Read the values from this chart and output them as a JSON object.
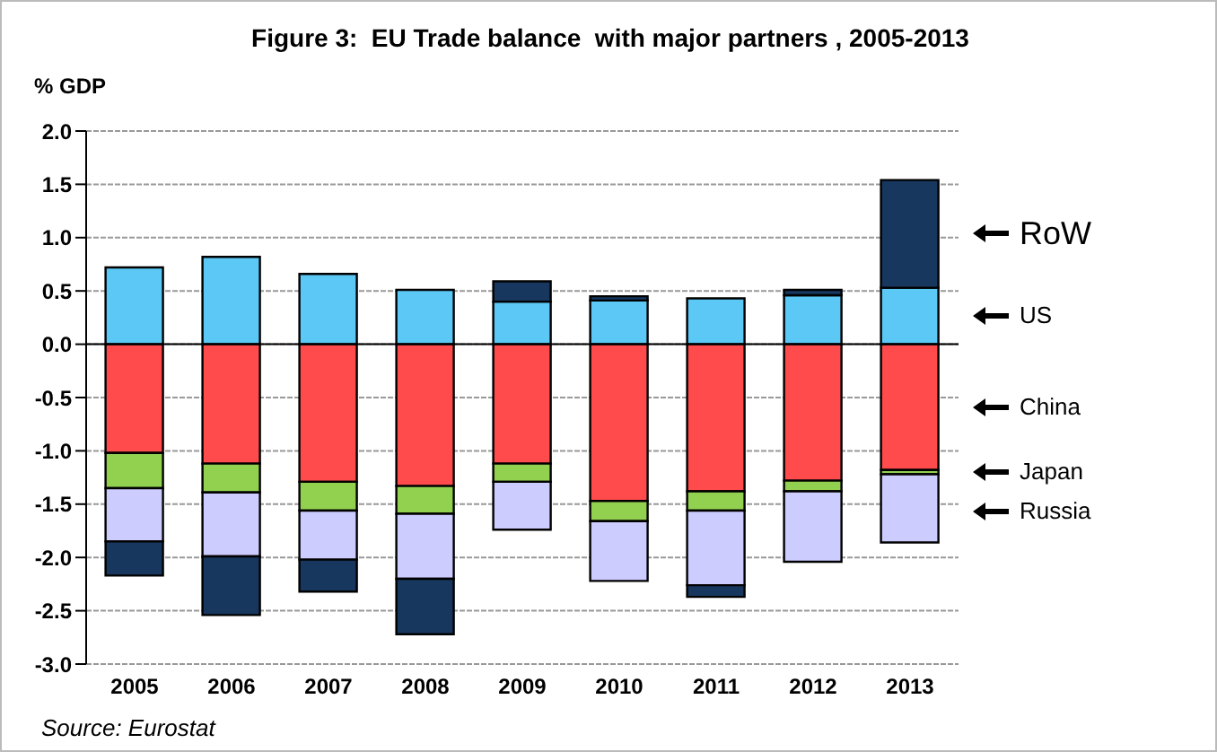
{
  "chart_data": {
    "type": "bar",
    "title": "Figure 3:  EU Trade balance  with major partners , 2005-2013",
    "ylabel": "% GDP",
    "categories": [
      "2005",
      "2006",
      "2007",
      "2008",
      "2009",
      "2010",
      "2011",
      "2012",
      "2013"
    ],
    "stacked": true,
    "series": [
      {
        "name": "US",
        "color": "#5bc8f5",
        "values": [
          0.72,
          0.82,
          0.66,
          0.51,
          0.4,
          0.41,
          0.43,
          0.46,
          0.53
        ]
      },
      {
        "name": "China",
        "color": "#ff4b4b",
        "values": [
          -1.02,
          -1.12,
          -1.29,
          -1.33,
          -1.12,
          -1.47,
          -1.38,
          -1.28,
          -1.18
        ]
      },
      {
        "name": "Japan",
        "color": "#92d050",
        "values": [
          -0.33,
          -0.27,
          -0.27,
          -0.26,
          -0.17,
          -0.19,
          -0.18,
          -0.1,
          -0.04
        ]
      },
      {
        "name": "Russia",
        "color": "#ccccff",
        "values": [
          -0.5,
          -0.6,
          -0.46,
          -0.61,
          -0.45,
          -0.56,
          -0.7,
          -0.66,
          -0.64
        ]
      },
      {
        "name": "RoW",
        "color": "#17375e",
        "values": [
          -0.32,
          -0.55,
          -0.3,
          -0.52,
          0.19,
          0.04,
          -0.11,
          0.05,
          1.01
        ]
      }
    ],
    "ylim": [
      -3.0,
      2.0
    ],
    "yticks": [
      {
        "value": -3,
        "label": "-3.0"
      },
      {
        "value": -2.5,
        "label": "-2.5"
      },
      {
        "value": -2,
        "label": "-2.0"
      },
      {
        "value": -1.5,
        "label": "-1.5"
      },
      {
        "value": -1,
        "label": "-1.0"
      },
      {
        "value": -0.5,
        "label": "-0.5"
      },
      {
        "value": 0,
        "label": "0.0"
      },
      {
        "value": 0.5,
        "label": "0.5"
      },
      {
        "value": 1,
        "label": "1.0"
      },
      {
        "value": 1.5,
        "label": "1.5"
      },
      {
        "value": 2,
        "label": "2.0"
      }
    ],
    "grid": "y",
    "legend": false,
    "annotations": [
      "Source: Eurostat"
    ]
  }
}
